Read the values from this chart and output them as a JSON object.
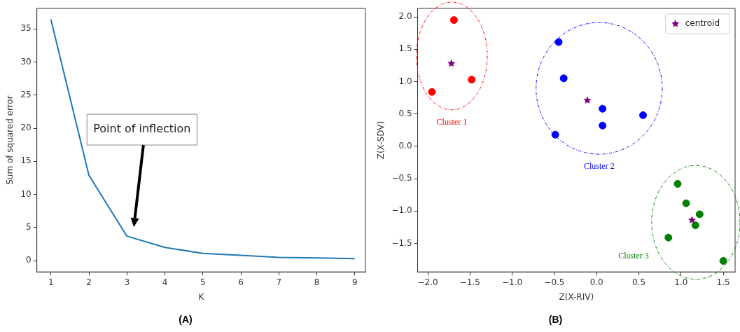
{
  "chart_data": [
    {
      "type": "line",
      "xlabel": "K",
      "ylabel": "Sum of squared error",
      "x": [
        1,
        2,
        3,
        4,
        5,
        6,
        7,
        8,
        9
      ],
      "values": [
        36.4,
        12.9,
        3.7,
        2.0,
        1.1,
        0.8,
        0.5,
        0.4,
        0.3
      ],
      "color": "#1f77b4",
      "xlim": [
        0.63,
        9.28
      ],
      "ylim": [
        -1.7,
        38.1
      ],
      "xticks": [
        1,
        2,
        3,
        4,
        5,
        6,
        7,
        8,
        9
      ],
      "yticks": [
        0,
        5,
        10,
        15,
        20,
        25,
        30,
        35
      ],
      "grid": false,
      "legend": false,
      "marker": "none",
      "annotations": [
        "Point of inflection",
        "(A)"
      ]
    },
    {
      "type": "scatter",
      "xlabel": "Z(X-RIV)",
      "ylabel": "Z(X-SDV)",
      "marker": "circle",
      "grid": false,
      "legend": "top right",
      "series": [
        {
          "color": "#ff0000",
          "x": [
            -1.69,
            -1.48,
            -1.95
          ],
          "values": [
            1.95,
            1.03,
            0.84
          ]
        },
        {
          "color": "#0000ff",
          "x": [
            -0.45,
            -0.39,
            0.07,
            0.07,
            -0.49,
            0.55
          ],
          "values": [
            1.61,
            1.05,
            0.58,
            0.32,
            0.18,
            0.48
          ]
        },
        {
          "color": "#008000",
          "x": [
            0.96,
            1.06,
            1.22,
            1.17,
            0.85,
            1.5
          ],
          "values": [
            -0.58,
            -0.88,
            -1.05,
            -1.22,
            -1.41,
            -1.77
          ]
        },
        {
          "name": "centroid",
          "color": "#800080",
          "marker": "star",
          "x": [
            -1.72,
            -0.11,
            1.13
          ],
          "values": [
            1.28,
            0.71,
            -1.14
          ]
        }
      ],
      "xlim": [
        -2.12,
        1.64
      ],
      "ylim": [
        -1.94,
        2.13
      ],
      "xticks": [
        {
          "value": -2,
          "label": "−2.0"
        },
        {
          "value": -1.5,
          "label": "−1.5"
        },
        {
          "value": -1,
          "label": "−1.0"
        },
        {
          "value": -0.5,
          "label": "−0.5"
        },
        {
          "value": 0,
          "label": "0.0"
        },
        {
          "value": 0.5,
          "label": "0.5"
        },
        {
          "value": 1,
          "label": "1.0"
        },
        {
          "value": 1.5,
          "label": "1.5"
        }
      ],
      "yticks": [
        {
          "value": -1.5,
          "label": "−1.5"
        },
        {
          "value": -1,
          "label": "−1.0"
        },
        {
          "value": -0.5,
          "label": "−0.5"
        },
        {
          "value": 0,
          "label": "0.0"
        },
        {
          "value": 0.5,
          "label": "0.5"
        },
        {
          "value": 1,
          "label": "1.0"
        },
        {
          "value": 1.5,
          "label": "1.5"
        },
        {
          "value": 2,
          "label": "2.0"
        }
      ],
      "annotations": [
        "Cluster 1",
        "Cluster 2",
        "Cluster 3",
        "(B)"
      ]
    }
  ]
}
